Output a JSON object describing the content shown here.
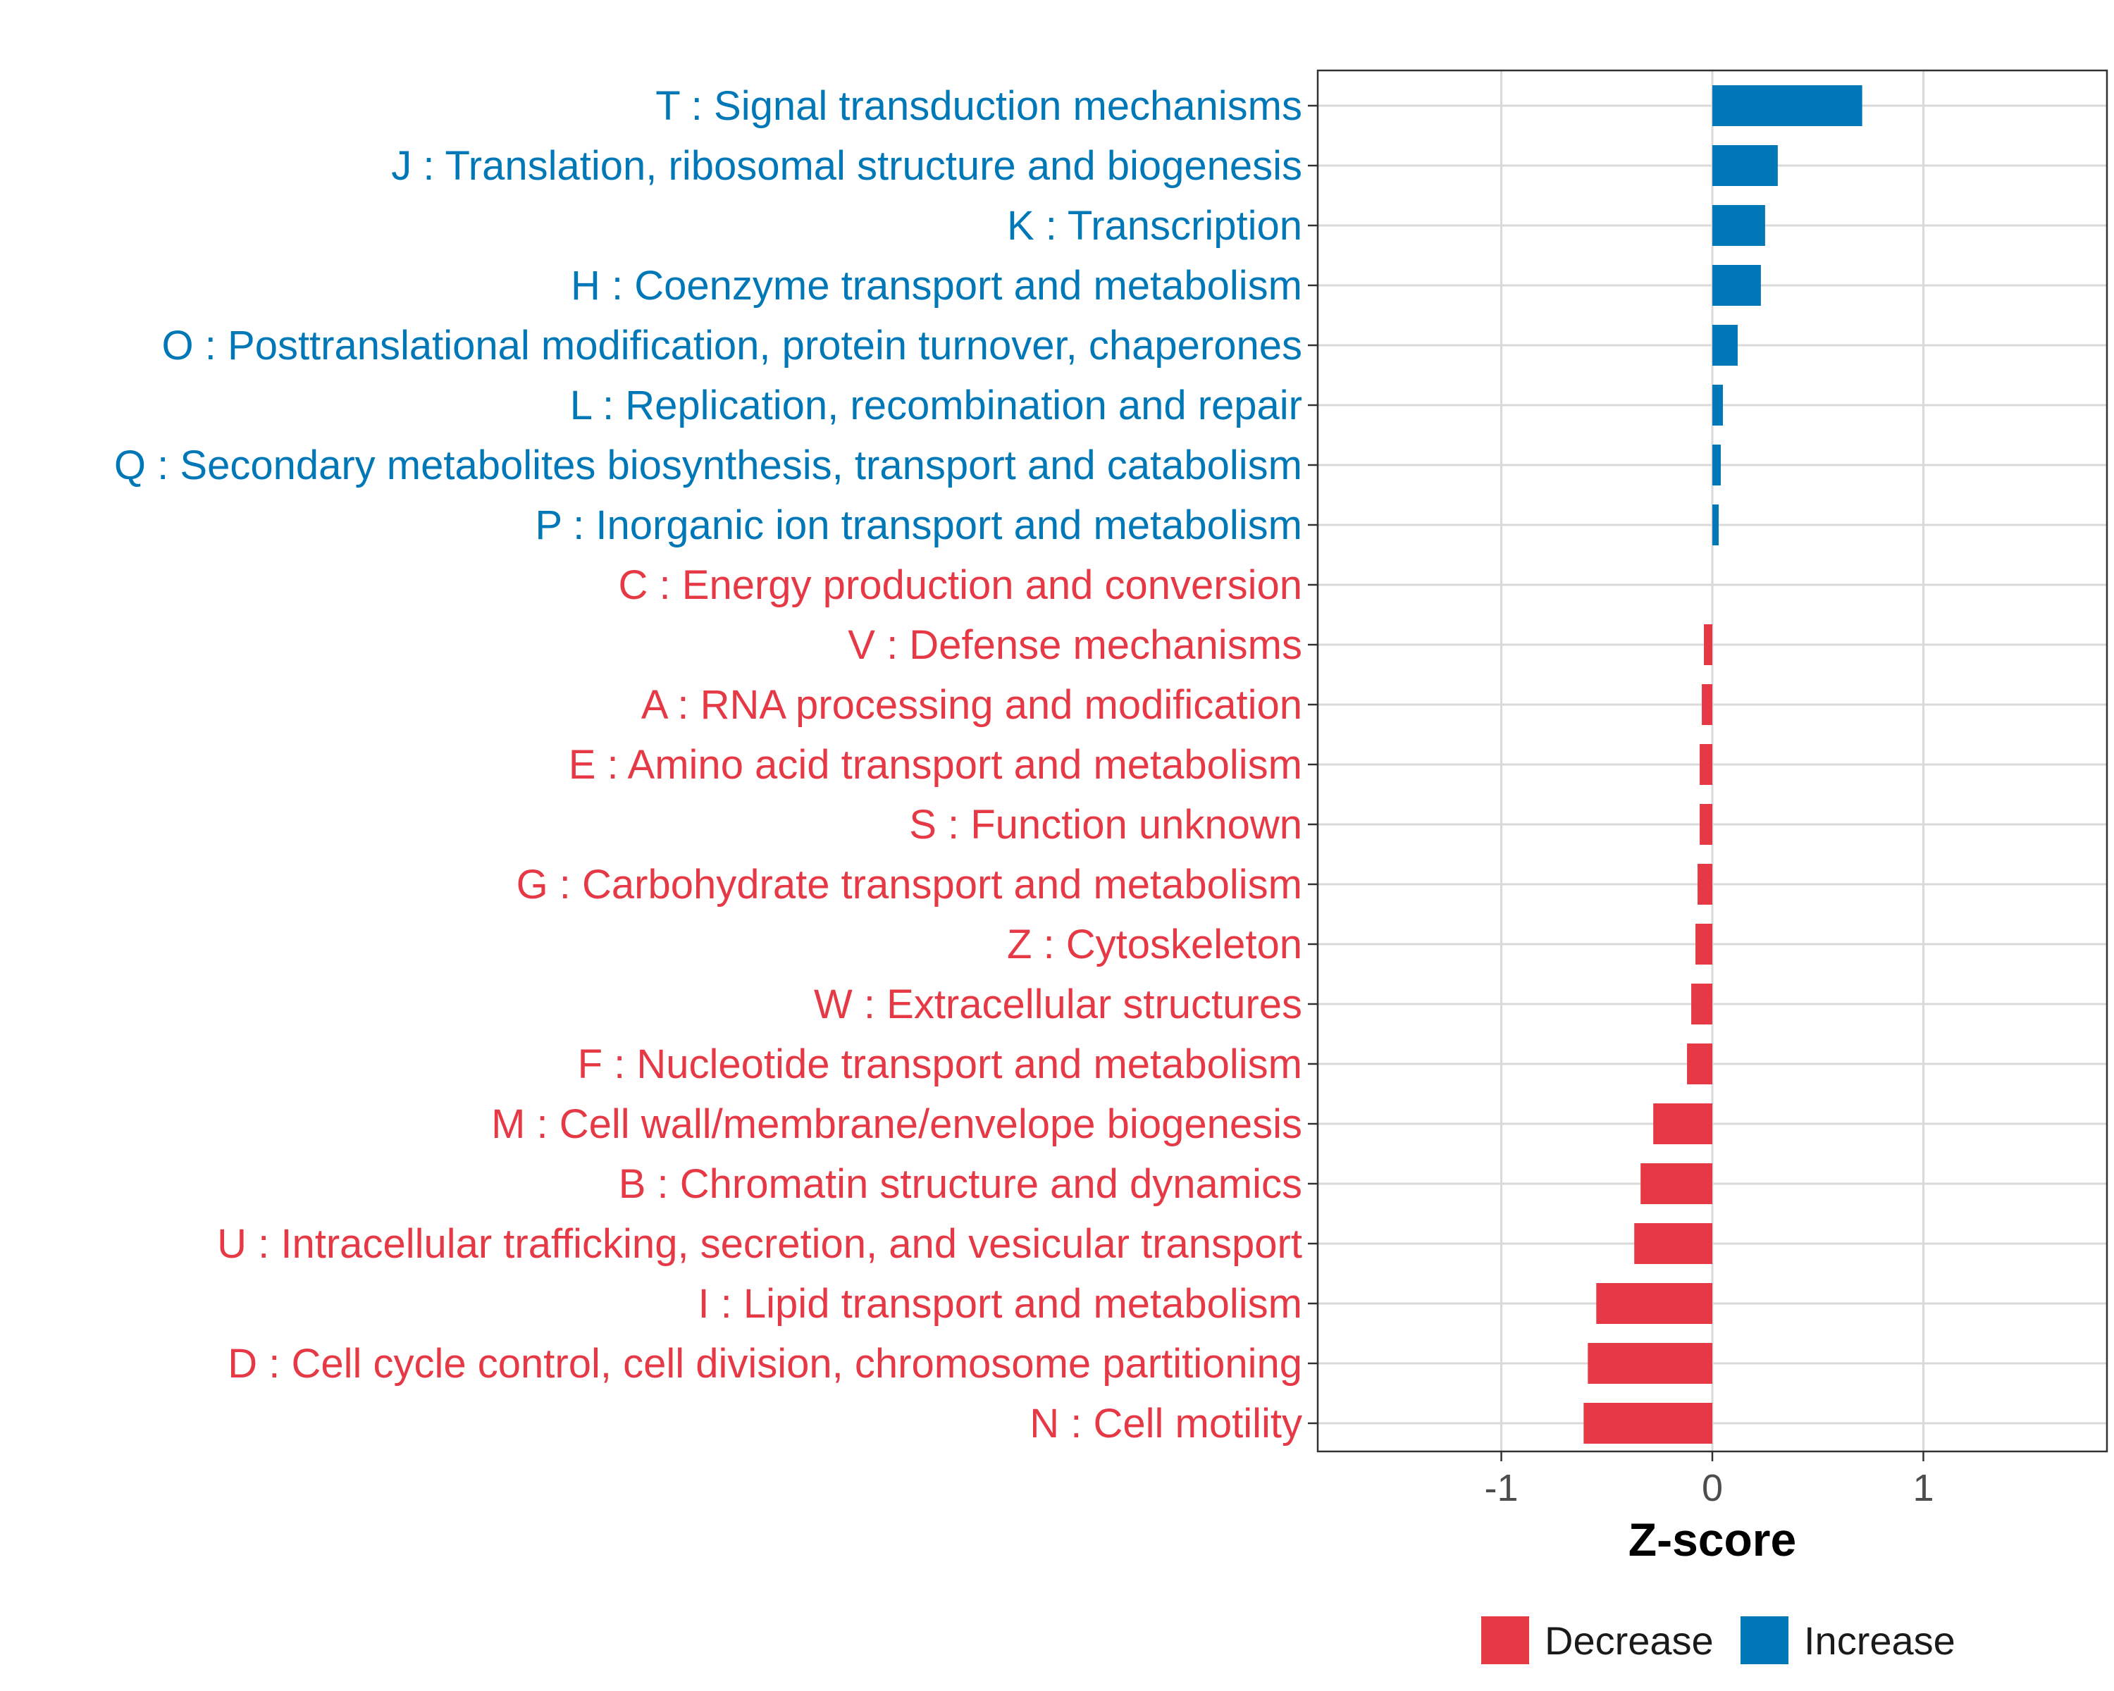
{
  "chart_data": {
    "type": "bar",
    "orientation": "horizontal",
    "title": "",
    "xlabel": "Z-score",
    "ylabel": "",
    "xlim": [
      -1.87,
      1.87
    ],
    "xticks": [
      -1,
      0,
      1
    ],
    "xtick_labels": [
      "-1",
      "0",
      "1"
    ],
    "grid": true,
    "legend_position": "bottom",
    "categories": [
      "T : Signal transduction mechanisms",
      "J : Translation, ribosomal structure and biogenesis",
      "K : Transcription",
      "H : Coenzyme transport and metabolism",
      "O : Posttranslational modification, protein turnover, chaperones",
      "L : Replication, recombination and repair",
      "Q : Secondary metabolites biosynthesis, transport and catabolism",
      "P : Inorganic ion transport and metabolism",
      "C : Energy production and conversion",
      "V : Defense mechanisms",
      "A : RNA processing and modification",
      "E : Amino acid transport and metabolism",
      "S : Function unknown",
      "G : Carbohydrate transport and metabolism",
      "Z : Cytoskeleton",
      "W : Extracellular structures",
      "F : Nucleotide transport and metabolism",
      "M : Cell wall/membrane/envelope biogenesis",
      "B : Chromatin structure and dynamics",
      "U : Intracellular trafficking, secretion, and vesicular transport",
      "I : Lipid transport and metabolism",
      "D : Cell cycle control, cell division, chromosome partitioning",
      "N : Cell motility"
    ],
    "values": [
      0.71,
      0.31,
      0.25,
      0.23,
      0.12,
      0.05,
      0.04,
      0.03,
      0.0,
      -0.04,
      -0.05,
      -0.06,
      -0.06,
      -0.07,
      -0.08,
      -0.1,
      -0.12,
      -0.28,
      -0.34,
      -0.37,
      -0.55,
      -0.59,
      -0.61
    ],
    "groups": [
      "Increase",
      "Increase",
      "Increase",
      "Increase",
      "Increase",
      "Increase",
      "Increase",
      "Increase",
      "Decrease",
      "Decrease",
      "Decrease",
      "Decrease",
      "Decrease",
      "Decrease",
      "Decrease",
      "Decrease",
      "Decrease",
      "Decrease",
      "Decrease",
      "Decrease",
      "Decrease",
      "Decrease",
      "Decrease"
    ],
    "legend": [
      {
        "name": "Decrease",
        "color": "#E63946"
      },
      {
        "name": "Increase",
        "color": "#0077B6"
      }
    ]
  }
}
